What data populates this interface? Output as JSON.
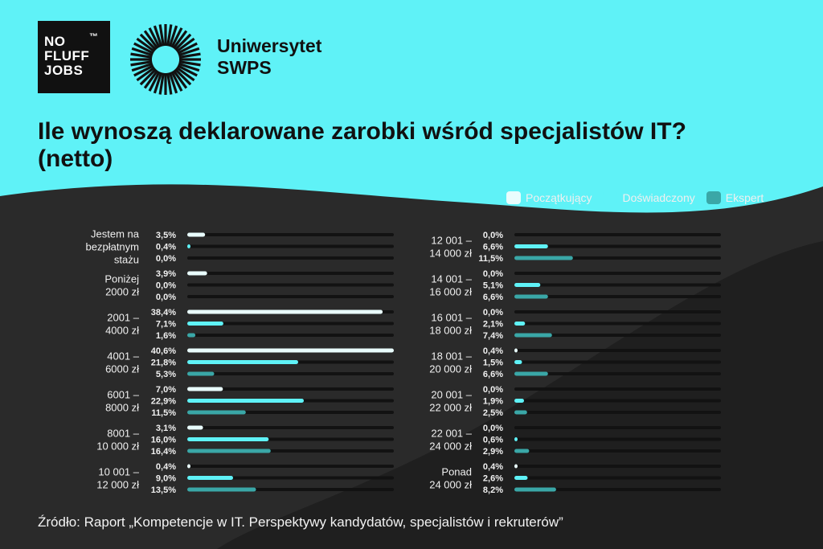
{
  "brand": {
    "nfj_lines": [
      "NO",
      "FLUFF",
      "JOBS"
    ],
    "nfj_tm": "™",
    "swps_lines": [
      "Uniwersytet",
      "SWPS"
    ]
  },
  "title_lines": [
    "Ile wynoszą deklarowane zarobki wśród specjalistów IT?",
    "(netto)"
  ],
  "source": "Źródło: Raport „Kompetencje w IT. Perspektywy kandydatów, specjalistów i rekruterów”",
  "colors": {
    "bg_top": "#5ff2f7",
    "bg_dark": "#2a2a2a",
    "track": "#121212",
    "label": "#f0f0f0"
  },
  "chart_data": {
    "type": "bar",
    "orientation": "horizontal",
    "max": 40.6,
    "series": [
      {
        "name": "Początkujący",
        "color": "#e9fdfd"
      },
      {
        "name": "Doświadczony",
        "color": "#5ff2f7"
      },
      {
        "name": "Ekspert",
        "color": "#3aa7a7"
      }
    ],
    "groups": [
      {
        "label": [
          "Jestem na",
          "bezpłatnym",
          "stażu"
        ],
        "values": [
          3.5,
          0.4,
          0.0
        ],
        "texts": [
          "3,5%",
          "0,4%",
          "0,0%"
        ]
      },
      {
        "label": [
          "Poniżej",
          "2000 zł"
        ],
        "values": [
          3.9,
          0.0,
          0.0
        ],
        "texts": [
          "3,9%",
          "0,0%",
          "0,0%"
        ]
      },
      {
        "label": [
          "2001 –",
          "4000 zł"
        ],
        "values": [
          38.4,
          7.1,
          1.6
        ],
        "texts": [
          "38,4%",
          "7,1%",
          "1,6%"
        ]
      },
      {
        "label": [
          "4001 –",
          "6000 zł"
        ],
        "values": [
          40.6,
          21.8,
          5.3
        ],
        "texts": [
          "40,6%",
          "21,8%",
          "5,3%"
        ]
      },
      {
        "label": [
          "6001 –",
          "8000 zł"
        ],
        "values": [
          7.0,
          22.9,
          11.5
        ],
        "texts": [
          "7,0%",
          "22,9%",
          "11,5%"
        ]
      },
      {
        "label": [
          "8001 –",
          "10 000 zł"
        ],
        "values": [
          3.1,
          16.0,
          16.4
        ],
        "texts": [
          "3,1%",
          "16,0%",
          "16,4%"
        ]
      },
      {
        "label": [
          "10 001 –",
          "12 000 zł"
        ],
        "values": [
          0.4,
          9.0,
          13.5
        ],
        "texts": [
          "0,4%",
          "9,0%",
          "13,5%"
        ]
      },
      {
        "label": [
          "12 001 –",
          "14 000 zł"
        ],
        "values": [
          0.0,
          6.6,
          11.5
        ],
        "texts": [
          "0,0%",
          "6,6%",
          "11,5%"
        ]
      },
      {
        "label": [
          "14 001 –",
          "16 000 zł"
        ],
        "values": [
          0.0,
          5.1,
          6.6
        ],
        "texts": [
          "0,0%",
          "5,1%",
          "6,6%"
        ]
      },
      {
        "label": [
          "16 001 –",
          "18 000 zł"
        ],
        "values": [
          0.0,
          2.1,
          7.4
        ],
        "texts": [
          "0,0%",
          "2,1%",
          "7,4%"
        ]
      },
      {
        "label": [
          "18 001 –",
          "20 000 zł"
        ],
        "values": [
          0.4,
          1.5,
          6.6
        ],
        "texts": [
          "0,4%",
          "1,5%",
          "6,6%"
        ]
      },
      {
        "label": [
          "20 001 –",
          "22 000 zł"
        ],
        "values": [
          0.0,
          1.9,
          2.5
        ],
        "texts": [
          "0,0%",
          "1,9%",
          "2,5%"
        ]
      },
      {
        "label": [
          "22 001 –",
          "24 000 zł"
        ],
        "values": [
          0.0,
          0.6,
          2.9
        ],
        "texts": [
          "0,0%",
          "0,6%",
          "2,9%"
        ]
      },
      {
        "label": [
          "Ponad",
          "24 000 zł"
        ],
        "values": [
          0.4,
          2.6,
          8.2
        ],
        "texts": [
          "0,4%",
          "2,6%",
          "8,2%"
        ]
      }
    ]
  }
}
